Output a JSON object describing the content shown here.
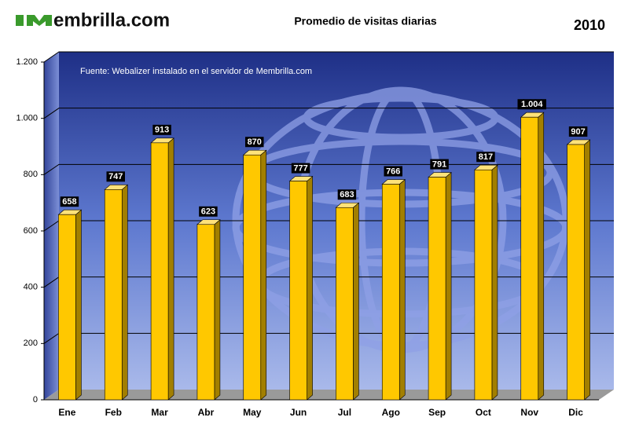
{
  "logo": "embrilla.com",
  "chart_data": {
    "type": "bar",
    "title": "Promedio de visitas diarias",
    "year": "2010",
    "source": "Fuente: Webalizer instalado en el servidor de Membrilla.com",
    "categories": [
      "Ene",
      "Feb",
      "Mar",
      "Abr",
      "May",
      "Jun",
      "Jul",
      "Ago",
      "Sep",
      "Oct",
      "Nov",
      "Dic"
    ],
    "values": [
      658,
      747,
      913,
      623,
      870,
      777,
      683,
      766,
      791,
      817,
      1004,
      907
    ],
    "value_labels": [
      "658",
      "747",
      "913",
      "623",
      "870",
      "777",
      "683",
      "766",
      "791",
      "817",
      "1.004",
      "907"
    ],
    "color": "#ffc800",
    "ylim": [
      0,
      1200
    ],
    "yticks": [
      0,
      200,
      400,
      600,
      800,
      {
        "value": 1000,
        "label": "1.000"
      },
      {
        "value": 1200,
        "label": "1.200"
      }
    ],
    "grid": true
  }
}
